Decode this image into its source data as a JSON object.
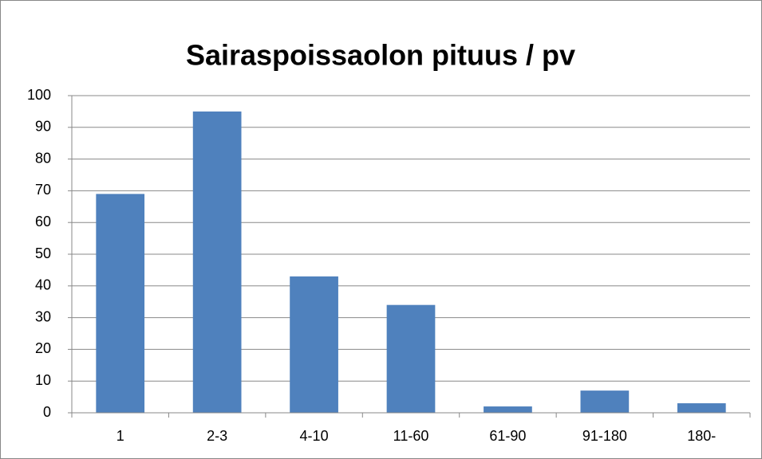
{
  "chart_data": {
    "type": "bar",
    "title": "Sairaspoissaolon pituus / pv",
    "categories": [
      "1",
      "2-3",
      "4-10",
      "11-60",
      "61-90",
      "91-180",
      "180-"
    ],
    "values": [
      69,
      95,
      43,
      34,
      2,
      7,
      3
    ],
    "color": "#4f81bd",
    "ylim": [
      0,
      100
    ],
    "yticks": [
      0,
      10,
      20,
      30,
      40,
      50,
      60,
      70,
      80,
      90,
      100
    ],
    "grid": true
  }
}
